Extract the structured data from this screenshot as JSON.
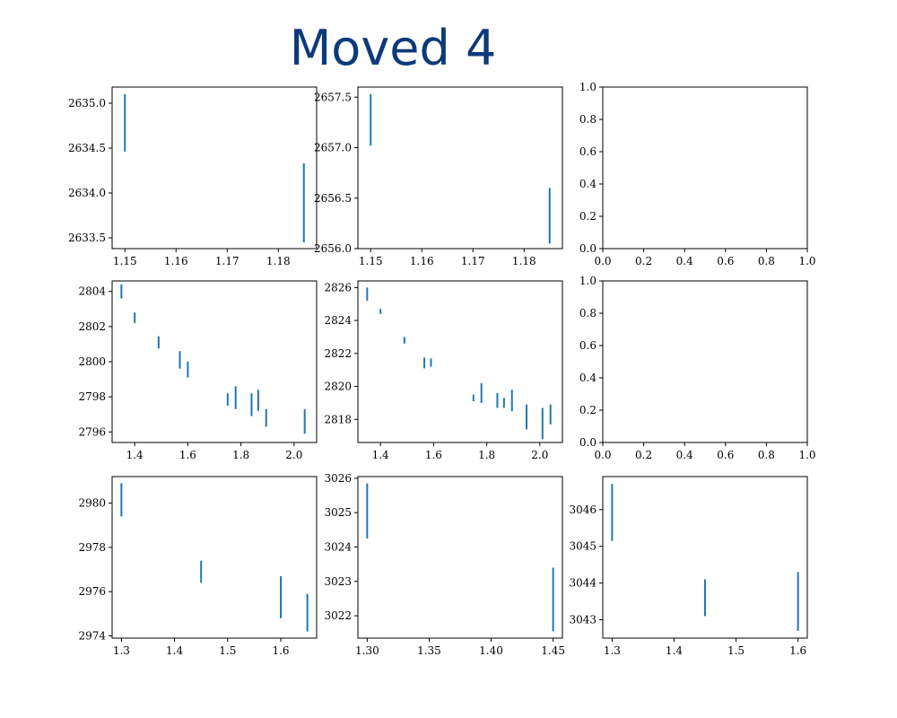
{
  "title": "Moved 4",
  "chart_data": [
    {
      "type": "errorbar",
      "row": 0,
      "col": 0,
      "xlim": [
        1.1475,
        1.1875
      ],
      "ylim": [
        2633.38,
        2635.18
      ],
      "xticks": [
        1.15,
        1.16,
        1.17,
        1.18
      ],
      "xtick_labels": [
        "1.15",
        "1.16",
        "1.17",
        "1.18"
      ],
      "yticks": [
        2633.5,
        2634.0,
        2634.5,
        2635.0
      ],
      "ytick_labels": [
        "2633.5",
        "2634.0",
        "2634.5",
        "2635.0"
      ],
      "bars": [
        {
          "x": 1.15,
          "ylow": 2634.46,
          "yhigh": 2635.1
        },
        {
          "x": 1.185,
          "ylow": 2633.45,
          "yhigh": 2634.33
        }
      ]
    },
    {
      "type": "errorbar",
      "row": 0,
      "col": 1,
      "xlim": [
        1.1475,
        1.1875
      ],
      "ylim": [
        2656.0,
        2657.6
      ],
      "xticks": [
        1.15,
        1.16,
        1.17,
        1.18
      ],
      "xtick_labels": [
        "1.15",
        "1.16",
        "1.17",
        "1.18"
      ],
      "yticks": [
        2656.0,
        2656.5,
        2657.0,
        2657.5
      ],
      "ytick_labels": [
        "2656.0",
        "2656.5",
        "2657.0",
        "2657.5"
      ],
      "bars": [
        {
          "x": 1.15,
          "ylow": 2657.02,
          "yhigh": 2657.53
        },
        {
          "x": 1.185,
          "ylow": 2656.05,
          "yhigh": 2656.6
        }
      ]
    },
    {
      "type": "empty",
      "row": 0,
      "col": 2,
      "xlim": [
        0,
        1
      ],
      "ylim": [
        0,
        1
      ],
      "xticks": [
        0,
        0.2,
        0.4,
        0.6,
        0.8,
        1.0
      ],
      "xtick_labels": [
        "0.0",
        "0.2",
        "0.4",
        "0.6",
        "0.8",
        "1.0"
      ],
      "yticks": [
        0,
        0.2,
        0.4,
        0.6,
        0.8,
        1.0
      ],
      "ytick_labels": [
        "0.0",
        "0.2",
        "0.4",
        "0.6",
        "0.8",
        "1.0"
      ],
      "bars": []
    },
    {
      "type": "errorbar",
      "row": 1,
      "col": 0,
      "xlim": [
        1.315,
        2.085
      ],
      "ylim": [
        2795.4,
        2804.6
      ],
      "xticks": [
        1.4,
        1.6,
        1.8,
        2.0
      ],
      "xtick_labels": [
        "1.4",
        "1.6",
        "1.8",
        "2.0"
      ],
      "yticks": [
        2796,
        2798,
        2800,
        2802,
        2804
      ],
      "ytick_labels": [
        "2796",
        "2798",
        "2800",
        "2802",
        "2804"
      ],
      "bars": [
        {
          "x": 1.35,
          "ylow": 2803.6,
          "yhigh": 2804.4
        },
        {
          "x": 1.4,
          "ylow": 2802.2,
          "yhigh": 2802.8
        },
        {
          "x": 1.49,
          "ylow": 2800.75,
          "yhigh": 2801.45
        },
        {
          "x": 1.57,
          "ylow": 2799.6,
          "yhigh": 2800.6
        },
        {
          "x": 1.6,
          "ylow": 2799.1,
          "yhigh": 2800.0
        },
        {
          "x": 1.75,
          "ylow": 2797.5,
          "yhigh": 2798.2
        },
        {
          "x": 1.78,
          "ylow": 2797.3,
          "yhigh": 2798.6
        },
        {
          "x": 1.84,
          "ylow": 2796.9,
          "yhigh": 2798.2
        },
        {
          "x": 1.865,
          "ylow": 2797.2,
          "yhigh": 2798.4
        },
        {
          "x": 1.895,
          "ylow": 2796.3,
          "yhigh": 2797.3
        },
        {
          "x": 2.04,
          "ylow": 2795.9,
          "yhigh": 2797.3
        }
      ]
    },
    {
      "type": "errorbar",
      "row": 1,
      "col": 1,
      "xlim": [
        1.315,
        2.085
      ],
      "ylim": [
        2816.6,
        2826.4
      ],
      "xticks": [
        1.4,
        1.6,
        1.8,
        2.0
      ],
      "xtick_labels": [
        "1.4",
        "1.6",
        "1.8",
        "2.0"
      ],
      "yticks": [
        2818,
        2820,
        2822,
        2824,
        2826
      ],
      "ytick_labels": [
        "2818",
        "2820",
        "2822",
        "2824",
        "2826"
      ],
      "bars": [
        {
          "x": 1.35,
          "ylow": 2825.2,
          "yhigh": 2826.0
        },
        {
          "x": 1.4,
          "ylow": 2824.4,
          "yhigh": 2824.7
        },
        {
          "x": 1.49,
          "ylow": 2822.6,
          "yhigh": 2823.0
        },
        {
          "x": 1.565,
          "ylow": 2821.1,
          "yhigh": 2821.75
        },
        {
          "x": 1.59,
          "ylow": 2821.2,
          "yhigh": 2821.7
        },
        {
          "x": 1.75,
          "ylow": 2819.1,
          "yhigh": 2819.5
        },
        {
          "x": 1.78,
          "ylow": 2819.0,
          "yhigh": 2820.2
        },
        {
          "x": 1.84,
          "ylow": 2818.7,
          "yhigh": 2819.6
        },
        {
          "x": 1.865,
          "ylow": 2818.7,
          "yhigh": 2819.3
        },
        {
          "x": 1.895,
          "ylow": 2818.5,
          "yhigh": 2819.8
        },
        {
          "x": 1.95,
          "ylow": 2817.4,
          "yhigh": 2818.9
        },
        {
          "x": 2.01,
          "ylow": 2816.8,
          "yhigh": 2818.7
        },
        {
          "x": 2.04,
          "ylow": 2817.7,
          "yhigh": 2818.9
        }
      ]
    },
    {
      "type": "empty",
      "row": 1,
      "col": 2,
      "xlim": [
        0,
        1
      ],
      "ylim": [
        0,
        1
      ],
      "xticks": [
        0,
        0.2,
        0.4,
        0.6,
        0.8,
        1.0
      ],
      "xtick_labels": [
        "0.0",
        "0.2",
        "0.4",
        "0.6",
        "0.8",
        "1.0"
      ],
      "yticks": [
        0,
        0.2,
        0.4,
        0.6,
        0.8,
        1.0
      ],
      "ytick_labels": [
        "0.0",
        "0.2",
        "0.4",
        "0.6",
        "0.8",
        "1.0"
      ],
      "bars": []
    },
    {
      "type": "errorbar",
      "row": 2,
      "col": 0,
      "xlim": [
        1.2825,
        1.6675
      ],
      "ylim": [
        2973.9,
        2981.2
      ],
      "xticks": [
        1.3,
        1.4,
        1.5,
        1.6
      ],
      "xtick_labels": [
        "1.3",
        "1.4",
        "1.5",
        "1.6"
      ],
      "yticks": [
        2974,
        2976,
        2978,
        2980
      ],
      "ytick_labels": [
        "2974",
        "2976",
        "2978",
        "2980"
      ],
      "bars": [
        {
          "x": 1.3,
          "ylow": 2979.4,
          "yhigh": 2980.9
        },
        {
          "x": 1.45,
          "ylow": 2976.4,
          "yhigh": 2977.4
        },
        {
          "x": 1.6,
          "ylow": 2974.8,
          "yhigh": 2976.7
        },
        {
          "x": 1.65,
          "ylow": 2974.2,
          "yhigh": 2975.9
        }
      ]
    },
    {
      "type": "errorbar",
      "row": 2,
      "col": 1,
      "xlim": [
        1.2925,
        1.4575
      ],
      "ylim": [
        3021.35,
        3026.05
      ],
      "xticks": [
        1.3,
        1.35,
        1.4,
        1.45
      ],
      "xtick_labels": [
        "1.30",
        "1.35",
        "1.40",
        "1.45"
      ],
      "yticks": [
        3022,
        3023,
        3024,
        3025,
        3026
      ],
      "ytick_labels": [
        "3022",
        "3023",
        "3024",
        "3025",
        "3026"
      ],
      "bars": [
        {
          "x": 1.3,
          "ylow": 3024.25,
          "yhigh": 3025.85
        },
        {
          "x": 1.45,
          "ylow": 3021.55,
          "yhigh": 3023.4
        }
      ]
    },
    {
      "type": "errorbar",
      "row": 2,
      "col": 2,
      "xlim": [
        1.285,
        1.615
      ],
      "ylim": [
        3042.5,
        3046.9
      ],
      "xticks": [
        1.3,
        1.4,
        1.5,
        1.6
      ],
      "xtick_labels": [
        "1.3",
        "1.4",
        "1.5",
        "1.6"
      ],
      "yticks": [
        3043,
        3044,
        3045,
        3046
      ],
      "ytick_labels": [
        "3043",
        "3044",
        "3045",
        "3046"
      ],
      "bars": [
        {
          "x": 1.3,
          "ylow": 3045.15,
          "yhigh": 3046.7
        },
        {
          "x": 1.45,
          "ylow": 3043.1,
          "yhigh": 3044.1
        },
        {
          "x": 1.6,
          "ylow": 3042.7,
          "yhigh": 3044.3
        }
      ]
    }
  ],
  "colors": {
    "bar": "#1f77b4",
    "axes": "#000000",
    "title": "#0d3a7a"
  }
}
